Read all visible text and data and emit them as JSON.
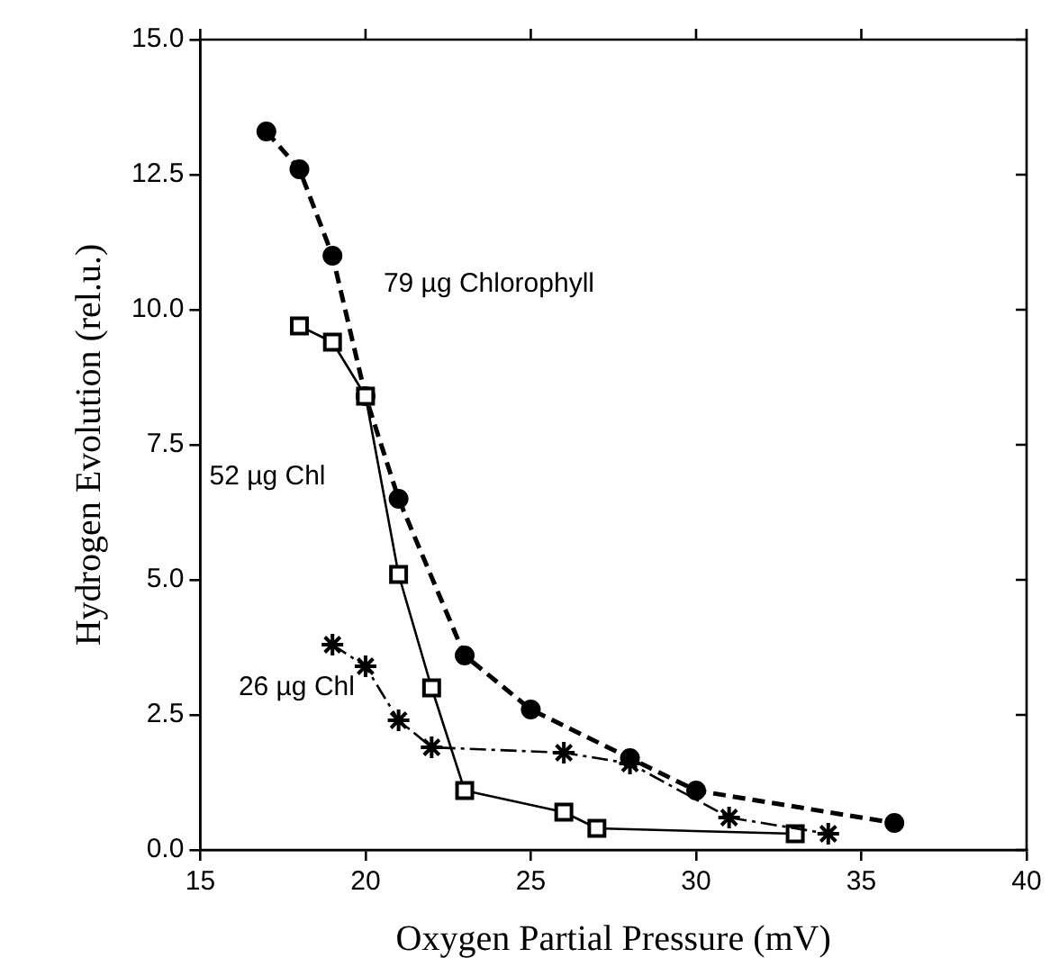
{
  "chart_data": {
    "type": "line",
    "xlabel": "Oxygen Partial Pressure (mV)",
    "ylabel": "Hydrogen Evolution (rel.u.)",
    "xlim": [
      15,
      40
    ],
    "xticks": [
      15,
      20,
      25,
      30,
      35,
      40
    ],
    "ylim": [
      0,
      15
    ],
    "yticks": [
      {
        "value": 0,
        "label": "0.0"
      },
      {
        "value": 2.5,
        "label": "2.5"
      },
      {
        "value": 5,
        "label": "5.0"
      },
      {
        "value": 7.5,
        "label": "7.5"
      },
      {
        "value": 10,
        "label": "10.0"
      },
      {
        "value": 12.5,
        "label": "12.5"
      },
      {
        "value": 15,
        "label": "15.0"
      }
    ],
    "grid": false,
    "legend": false,
    "series": [
      {
        "name": "79 µg Chlorophyll",
        "color": "#000000",
        "marker": "circle",
        "line_style": "dashed",
        "x": [
          17,
          18,
          19,
          20,
          21,
          23,
          25,
          28,
          30,
          36
        ],
        "values": [
          13.3,
          12.6,
          11.0,
          8.4,
          6.5,
          3.6,
          2.6,
          1.7,
          1.1,
          0.5
        ]
      },
      {
        "name": "52 µg Chl",
        "color": "#000000",
        "marker": "square",
        "line_style": "solid",
        "x": [
          18,
          19,
          20,
          21,
          22,
          23,
          26,
          27,
          33
        ],
        "values": [
          9.7,
          9.4,
          8.4,
          5.1,
          3.0,
          1.1,
          0.7,
          0.4,
          0.3
        ]
      },
      {
        "name": "26 µg Chl",
        "color": "#000000",
        "marker": "cross",
        "line_style": "dashdot",
        "x": [
          19,
          20,
          21,
          22,
          26,
          28,
          31,
          34
        ],
        "values": [
          3.8,
          3.4,
          2.4,
          1.9,
          1.8,
          1.6,
          0.6,
          0.3
        ]
      }
    ]
  }
}
